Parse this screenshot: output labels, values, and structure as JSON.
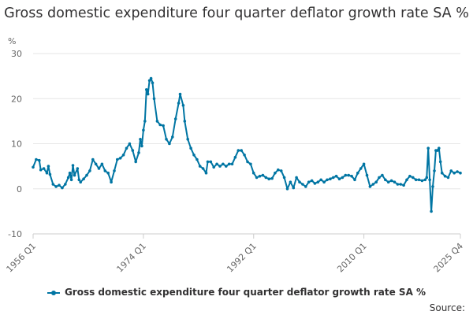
{
  "chart_data": {
    "type": "line",
    "title": "Gross domestic expenditure four quarter deflator growth rate SA %",
    "ylabel": "%",
    "ylim": [
      -10,
      30
    ],
    "yticks": [
      -10,
      0,
      10,
      20,
      30
    ],
    "xticks": [
      "1956 Q1",
      "1974 Q1",
      "1992 Q1",
      "2010 Q1",
      "2025 Q4"
    ],
    "x_start": "1956 Q1",
    "x_end": "2025 Q4",
    "grid": true,
    "legend_position": "bottom",
    "series": [
      {
        "name": "Gross domestic expenditure four quarter deflator growth rate SA %",
        "color": "#0075a3",
        "points": [
          [
            "1956 Q1",
            4.8
          ],
          [
            "1956 Q3",
            6.5
          ],
          [
            "1957 Q1",
            6.3
          ],
          [
            "1957 Q2",
            4.2
          ],
          [
            "1957 Q4",
            4.5
          ],
          [
            "1958 Q2",
            3.5
          ],
          [
            "1958 Q3",
            5.0
          ],
          [
            "1958 Q4",
            3.2
          ],
          [
            "1959 Q2",
            1.0
          ],
          [
            "1959 Q4",
            0.5
          ],
          [
            "1960 Q2",
            0.8
          ],
          [
            "1960 Q4",
            0.2
          ],
          [
            "1961 Q2",
            1.0
          ],
          [
            "1961 Q4",
            2.5
          ],
          [
            "1962 Q1",
            3.5
          ],
          [
            "1962 Q2",
            2.0
          ],
          [
            "1962 Q3",
            5.2
          ],
          [
            "1962 Q4",
            3.0
          ],
          [
            "1963 Q2",
            4.5
          ],
          [
            "1963 Q3",
            2.0
          ],
          [
            "1963 Q4",
            1.5
          ],
          [
            "1964 Q2",
            2.2
          ],
          [
            "1964 Q4",
            3.0
          ],
          [
            "1965 Q2",
            4.0
          ],
          [
            "1965 Q4",
            6.5
          ],
          [
            "1966 Q2",
            5.5
          ],
          [
            "1966 Q4",
            4.5
          ],
          [
            "1967 Q2",
            5.5
          ],
          [
            "1967 Q4",
            4.0
          ],
          [
            "1968 Q2",
            3.5
          ],
          [
            "1968 Q4",
            1.5
          ],
          [
            "1969 Q2",
            4.0
          ],
          [
            "1969 Q4",
            6.5
          ],
          [
            "1970 Q2",
            6.8
          ],
          [
            "1970 Q4",
            7.5
          ],
          [
            "1971 Q2",
            9.0
          ],
          [
            "1971 Q4",
            10.0
          ],
          [
            "1972 Q2",
            8.5
          ],
          [
            "1972 Q4",
            6.0
          ],
          [
            "1973 Q2",
            8.0
          ],
          [
            "1973 Q3",
            11.0
          ],
          [
            "1973 Q4",
            9.5
          ],
          [
            "1974 Q1",
            13.0
          ],
          [
            "1974 Q2",
            15.0
          ],
          [
            "1974 Q3",
            22.0
          ],
          [
            "1974 Q4",
            21.0
          ],
          [
            "1975 Q1",
            24.0
          ],
          [
            "1975 Q2",
            24.5
          ],
          [
            "1975 Q3",
            23.5
          ],
          [
            "1975 Q4",
            20.0
          ],
          [
            "1976 Q2",
            15.0
          ],
          [
            "1976 Q4",
            14.2
          ],
          [
            "1977 Q2",
            14.0
          ],
          [
            "1977 Q4",
            11.0
          ],
          [
            "1978 Q2",
            10.0
          ],
          [
            "1978 Q4",
            11.5
          ],
          [
            "1979 Q2",
            15.5
          ],
          [
            "1979 Q4",
            19.0
          ],
          [
            "1980 Q1",
            21.0
          ],
          [
            "1980 Q3",
            18.5
          ],
          [
            "1980 Q4",
            15.0
          ],
          [
            "1981 Q2",
            11.0
          ],
          [
            "1981 Q4",
            9.0
          ],
          [
            "1982 Q2",
            7.5
          ],
          [
            "1982 Q4",
            6.5
          ],
          [
            "1983 Q2",
            5.0
          ],
          [
            "1983 Q4",
            4.5
          ],
          [
            "1984 Q2",
            3.5
          ],
          [
            "1984 Q3",
            6.0
          ],
          [
            "1985 Q1",
            6.0
          ],
          [
            "1985 Q3",
            4.8
          ],
          [
            "1986 Q1",
            5.5
          ],
          [
            "1986 Q3",
            5.0
          ],
          [
            "1987 Q1",
            5.5
          ],
          [
            "1987 Q3",
            5.0
          ],
          [
            "1988 Q1",
            5.5
          ],
          [
            "1988 Q3",
            5.5
          ],
          [
            "1989 Q1",
            7.0
          ],
          [
            "1989 Q3",
            8.5
          ],
          [
            "1990 Q1",
            8.5
          ],
          [
            "1990 Q3",
            7.5
          ],
          [
            "1991 Q1",
            6.0
          ],
          [
            "1991 Q3",
            5.5
          ],
          [
            "1992 Q1",
            3.5
          ],
          [
            "1992 Q3",
            2.5
          ],
          [
            "1993 Q1",
            2.8
          ],
          [
            "1993 Q3",
            3.0
          ],
          [
            "1994 Q1",
            2.5
          ],
          [
            "1994 Q3",
            2.2
          ],
          [
            "1995 Q1",
            2.3
          ],
          [
            "1995 Q3",
            3.5
          ],
          [
            "1996 Q1",
            4.2
          ],
          [
            "1996 Q3",
            4.0
          ],
          [
            "1997 Q1",
            2.5
          ],
          [
            "1997 Q3",
            0.0
          ],
          [
            "1998 Q1",
            1.5
          ],
          [
            "1998 Q3",
            0.2
          ],
          [
            "1999 Q1",
            2.5
          ],
          [
            "1999 Q3",
            1.5
          ],
          [
            "2000 Q1",
            1.0
          ],
          [
            "2000 Q3",
            0.5
          ],
          [
            "2001 Q1",
            1.5
          ],
          [
            "2001 Q3",
            1.8
          ],
          [
            "2002 Q1",
            1.2
          ],
          [
            "2002 Q3",
            1.5
          ],
          [
            "2003 Q1",
            2.0
          ],
          [
            "2003 Q3",
            1.5
          ],
          [
            "2004 Q1",
            2.0
          ],
          [
            "2004 Q3",
            2.2
          ],
          [
            "2005 Q1",
            2.5
          ],
          [
            "2005 Q3",
            2.8
          ],
          [
            "2006 Q1",
            2.2
          ],
          [
            "2006 Q3",
            2.5
          ],
          [
            "2007 Q1",
            3.0
          ],
          [
            "2007 Q3",
            3.0
          ],
          [
            "2008 Q1",
            2.8
          ],
          [
            "2008 Q3",
            2.0
          ],
          [
            "2009 Q1",
            3.5
          ],
          [
            "2009 Q3",
            4.5
          ],
          [
            "2010 Q1",
            5.5
          ],
          [
            "2010 Q3",
            3.0
          ],
          [
            "2011 Q1",
            0.5
          ],
          [
            "2011 Q3",
            1.0
          ],
          [
            "2012 Q1",
            1.5
          ],
          [
            "2012 Q3",
            2.5
          ],
          [
            "2013 Q1",
            3.0
          ],
          [
            "2013 Q3",
            2.0
          ],
          [
            "2014 Q1",
            1.5
          ],
          [
            "2014 Q3",
            1.8
          ],
          [
            "2015 Q1",
            1.5
          ],
          [
            "2015 Q3",
            1.0
          ],
          [
            "2016 Q1",
            1.0
          ],
          [
            "2016 Q3",
            0.8
          ],
          [
            "2017 Q1",
            2.0
          ],
          [
            "2017 Q3",
            2.8
          ],
          [
            "2018 Q1",
            2.5
          ],
          [
            "2018 Q3",
            2.0
          ],
          [
            "2019 Q1",
            2.0
          ],
          [
            "2019 Q3",
            1.8
          ],
          [
            "2020 Q1",
            2.0
          ],
          [
            "2020 Q2",
            2.5
          ],
          [
            "2020 Q3",
            9.0
          ],
          [
            "2020 Q4",
            2.0
          ],
          [
            "2021 Q1",
            -5.0
          ],
          [
            "2021 Q2",
            0.5
          ],
          [
            "2021 Q3",
            4.0
          ],
          [
            "2021 Q4",
            8.5
          ],
          [
            "2022 Q1",
            8.5
          ],
          [
            "2022 Q2",
            9.0
          ],
          [
            "2022 Q3",
            6.0
          ],
          [
            "2022 Q4",
            3.5
          ],
          [
            "2023 Q2",
            2.8
          ],
          [
            "2023 Q4",
            2.5
          ],
          [
            "2024 Q2",
            4.0
          ],
          [
            "2024 Q4",
            3.5
          ],
          [
            "2025 Q2",
            3.8
          ],
          [
            "2025 Q4",
            3.5
          ]
        ]
      }
    ]
  },
  "footer": {
    "source_label": "Source:"
  }
}
